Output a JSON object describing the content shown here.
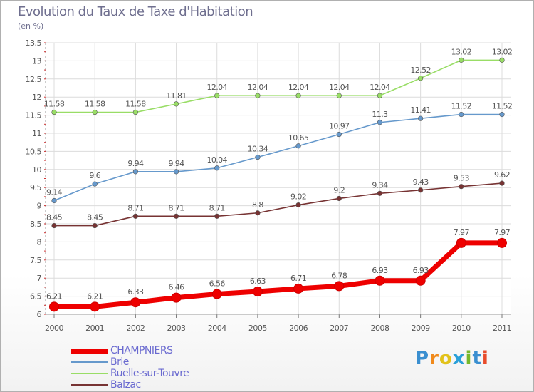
{
  "title": "Evolution du Taux de Taxe d'Habitation",
  "subtitle": "(en %)",
  "logo": "Proxiti",
  "chart_data": {
    "type": "line",
    "title": "Evolution du Taux de Taxe d'Habitation",
    "ylabel": "(en %)",
    "xlabel": "",
    "x": [
      "2000",
      "2001",
      "2002",
      "2003",
      "2004",
      "2005",
      "2006",
      "2007",
      "2008",
      "2009",
      "2010",
      "2011"
    ],
    "ylim": [
      6,
      13.5
    ],
    "yticks": [
      "6",
      "6.5",
      "7",
      "7.5",
      "8",
      "8.5",
      "9",
      "9.5",
      "10",
      "10.5",
      "11",
      "11.5",
      "12",
      "12.5",
      "13",
      "13.5"
    ],
    "grid": true,
    "legend_position": "bottom-left",
    "series": [
      {
        "name": "CHAMPNIERS",
        "color": "#ee0000",
        "values": [
          6.21,
          6.21,
          6.33,
          6.46,
          6.56,
          6.63,
          6.71,
          6.78,
          6.93,
          6.93,
          7.97,
          7.97
        ],
        "labels": [
          "6.21",
          "6.21",
          "6.33",
          "6.46",
          "6.56",
          "6.63",
          "6.71",
          "6.78",
          "6.93",
          "6.93",
          "7.97",
          "7.97"
        ]
      },
      {
        "name": "Brie",
        "color": "#6699cc",
        "values": [
          9.14,
          9.6,
          9.94,
          9.94,
          10.04,
          10.34,
          10.65,
          10.97,
          11.3,
          11.41,
          11.52,
          11.52
        ],
        "labels": [
          "9.14",
          "9.6",
          "9.94",
          "9.94",
          "10.04",
          "10.34",
          "10.65",
          "10.97",
          "11.3",
          "11.41",
          "11.52",
          "11.52"
        ]
      },
      {
        "name": "Ruelle-sur-Touvre",
        "color": "#99dd66",
        "values": [
          11.58,
          11.58,
          11.58,
          11.81,
          12.04,
          12.04,
          12.04,
          12.04,
          12.04,
          12.52,
          13.02,
          13.02
        ],
        "labels": [
          "11.58",
          "11.58",
          "11.58",
          "11.81",
          "12.04",
          "12.04",
          "12.04",
          "12.04",
          "12.04",
          "12.52",
          "13.02",
          "13.02"
        ]
      },
      {
        "name": "Balzac",
        "color": "#773333",
        "values": [
          8.45,
          8.45,
          8.71,
          8.71,
          8.71,
          8.8,
          9.02,
          9.2,
          9.34,
          9.43,
          9.53,
          9.62
        ],
        "labels": [
          "8.45",
          "8.45",
          "8.71",
          "8.71",
          "8.71",
          "8.8",
          "9.02",
          "9.2",
          "9.34",
          "9.43",
          "9.53",
          "9.62"
        ]
      }
    ]
  }
}
